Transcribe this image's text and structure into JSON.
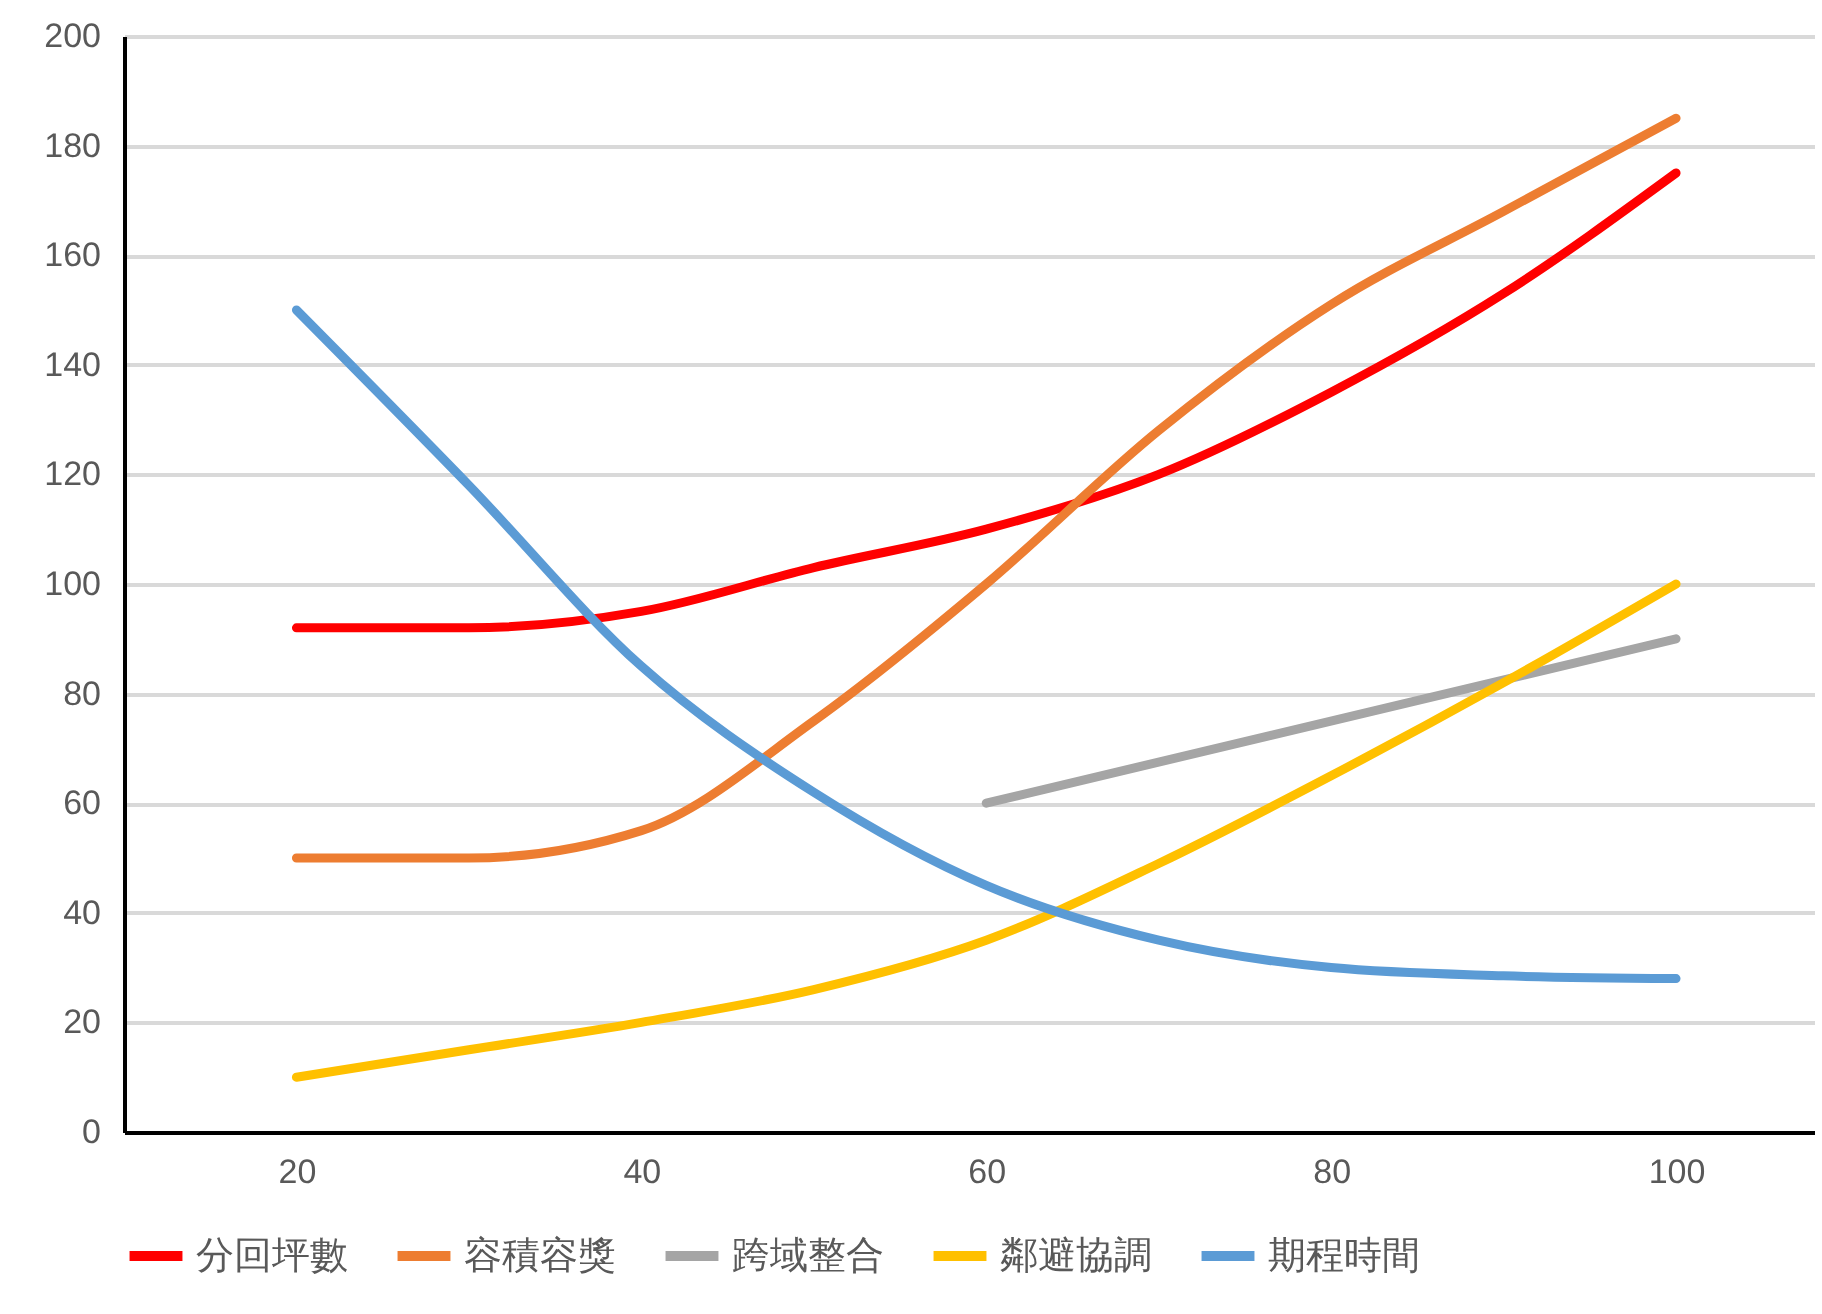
{
  "chart_data": {
    "type": "line",
    "xlim": [
      10,
      108
    ],
    "xticks": [
      20,
      40,
      60,
      80,
      100
    ],
    "ylim": [
      0,
      200
    ],
    "yticks": [
      0,
      20,
      40,
      60,
      80,
      100,
      120,
      140,
      160,
      180,
      200
    ],
    "grid": "y",
    "legend": "bottom",
    "marker": "none",
    "line_style": "solid",
    "series": [
      {
        "name": "分回坪數",
        "color": "#ff0000",
        "x": [
          20,
          30,
          40,
          50,
          60,
          70,
          80,
          90,
          100
        ],
        "values": [
          92,
          92,
          95,
          103,
          110,
          120,
          135,
          153,
          175
        ]
      },
      {
        "name": "容積容獎",
        "color": "#ed7d31",
        "x": [
          20,
          30,
          40,
          50,
          60,
          70,
          80,
          90,
          100
        ],
        "values": [
          50,
          50,
          55,
          75,
          100,
          128,
          151,
          168,
          185
        ]
      },
      {
        "name": "跨域整合",
        "color": "#a5a5a5",
        "x": [
          60,
          100
        ],
        "values": [
          60,
          90
        ]
      },
      {
        "name": "鄰避協調",
        "color": "#ffc000",
        "x": [
          20,
          30,
          40,
          50,
          60,
          70,
          80,
          90,
          100
        ],
        "values": [
          10,
          15,
          20,
          26,
          35,
          49,
          65,
          82,
          100
        ]
      },
      {
        "name": "期程時間",
        "color": "#5b9bd5",
        "x": [
          20,
          30,
          40,
          50,
          60,
          70,
          80,
          90,
          100
        ],
        "values": [
          150,
          118,
          85,
          62,
          45,
          35,
          30,
          28.5,
          28
        ]
      }
    ]
  }
}
